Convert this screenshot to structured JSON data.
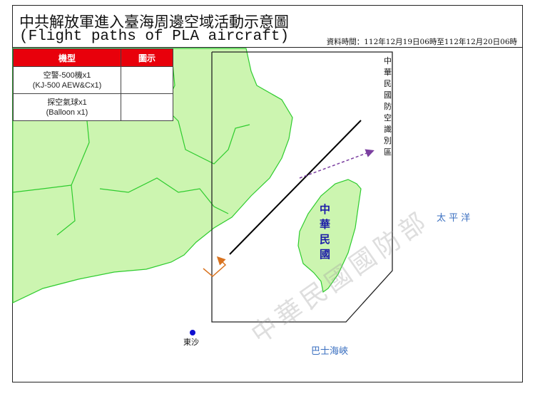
{
  "title": {
    "zh": "中共解放軍進入臺海周邊空域活動示意圖",
    "en": "(Flight paths of PLA aircraft)",
    "timestamp": "資料時間：112年12月19日06時至112年12月20日06時"
  },
  "legend": {
    "headers": [
      "機型",
      "圖示"
    ],
    "rows": [
      {
        "zh": "空警-500機x1",
        "en": "(KJ-500 AEW&Cx1)",
        "color": "#d9731f",
        "style": "solid"
      },
      {
        "zh": "探空氣球x1",
        "en": "(Balloon x1)",
        "color": "#7b3fa0",
        "style": "dashed"
      }
    ]
  },
  "map": {
    "adiz_label": "中華民國防空識別區",
    "taiwan_label": "中華民國",
    "pacific": "太 平 洋",
    "bashi": "巴士海峽",
    "dongsha": "東沙",
    "watermark": "中華民國國防部",
    "land_color": "#ccf5b0",
    "border_color": "#2ecc2e"
  }
}
